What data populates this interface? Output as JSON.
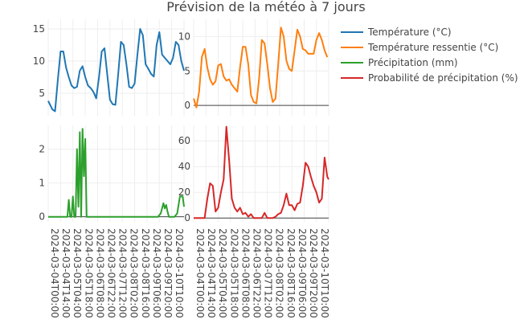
{
  "title": "Prévision de la météo à 7 jours",
  "legend": [
    {
      "name": "Température (°C)",
      "color": "#1f77b4"
    },
    {
      "name": "Température ressentie (°C)",
      "color": "#ff7f0e"
    },
    {
      "name": "Précipitation (mm)",
      "color": "#2ca02c"
    },
    {
      "name": "Probabilité de précipitation (%)",
      "color": "#d62728"
    }
  ],
  "chart_data": {
    "type": "line",
    "title": "Prévision de la météo à 7 jours",
    "legend_position": "top-right",
    "grid": true,
    "x_tick_labels": {
      "left": [
        "2024-03-04T00:00",
        "2024-03-04T14:00",
        "2024-03-05T04:00",
        "2024-03-05T18:00",
        "2024-03-06T08:00",
        "2024-03-06T22:00",
        "2024-03-07T12:00",
        "2024-03-08T02:00",
        "2024-03-08T16:00",
        "2024-03-09T06:00",
        "2024-03-09T20:00",
        "2024-03-10T10:00"
      ],
      "right": [
        "2024-03-04T00:00",
        "2024-03-04T14:00",
        "2024-03-05T04:00",
        "2024-03-05T18:00",
        "2024-03-06T08:00",
        "2024-03-06T22:00",
        "2024-03-07T12:00",
        "2024-03-08T02:00",
        "2024-03-08T16:00",
        "2024-03-09T06:00",
        "2024-03-09T20:00",
        "2024-03-10T10:00"
      ]
    },
    "panels": [
      {
        "id": "temperature",
        "series_name": "Température (°C)",
        "color": "#1f77b4",
        "ylim": [
          1.5,
          16.5
        ],
        "yticks": [
          5,
          10,
          15
        ],
        "zeroline": false,
        "points": [
          [
            0,
            3.8
          ],
          [
            3,
            2.5
          ],
          [
            5,
            2.2
          ],
          [
            7,
            7.0
          ],
          [
            9,
            11.5
          ],
          [
            11,
            11.5
          ],
          [
            13,
            9.0
          ],
          [
            15,
            7.5
          ],
          [
            17,
            6.2
          ],
          [
            19,
            5.8
          ],
          [
            21,
            6.0
          ],
          [
            23,
            8.5
          ],
          [
            25,
            9.2
          ],
          [
            27,
            7.5
          ],
          [
            29,
            6.2
          ],
          [
            31,
            5.8
          ],
          [
            33,
            5.2
          ],
          [
            35,
            4.2
          ],
          [
            37,
            7.5
          ],
          [
            39,
            11.5
          ],
          [
            41,
            12.0
          ],
          [
            43,
            8.0
          ],
          [
            45,
            4.0
          ],
          [
            47,
            3.3
          ],
          [
            49,
            3.2
          ],
          [
            51,
            8.0
          ],
          [
            53,
            13.0
          ],
          [
            55,
            12.5
          ],
          [
            57,
            9.5
          ],
          [
            59,
            6.0
          ],
          [
            61,
            5.8
          ],
          [
            63,
            6.5
          ],
          [
            65,
            11.0
          ],
          [
            67,
            15.0
          ],
          [
            69,
            14.0
          ],
          [
            71,
            9.5
          ],
          [
            73,
            8.8
          ],
          [
            75,
            8.0
          ],
          [
            77,
            7.6
          ],
          [
            79,
            12.5
          ],
          [
            81,
            14.5
          ],
          [
            83,
            11.0
          ],
          [
            85,
            10.5
          ],
          [
            87,
            10.0
          ],
          [
            89,
            9.5
          ],
          [
            91,
            10.5
          ],
          [
            93,
            13.0
          ],
          [
            95,
            12.5
          ],
          [
            97,
            10.0
          ],
          [
            99,
            8.5
          ]
        ]
      },
      {
        "id": "apparent-temperature",
        "series_name": "Température ressentie (°C)",
        "color": "#ff7f0e",
        "ylim": [
          -1.5,
          12.5
        ],
        "yticks": [
          0,
          5,
          10
        ],
        "zeroline": true,
        "points": [
          [
            0,
            1.0
          ],
          [
            2,
            -0.3
          ],
          [
            4,
            2.0
          ],
          [
            6,
            7.0
          ],
          [
            8,
            8.2
          ],
          [
            10,
            5.5
          ],
          [
            12,
            3.8
          ],
          [
            14,
            3.0
          ],
          [
            16,
            3.5
          ],
          [
            18,
            5.8
          ],
          [
            20,
            6.0
          ],
          [
            22,
            4.2
          ],
          [
            24,
            3.6
          ],
          [
            26,
            3.8
          ],
          [
            28,
            3.0
          ],
          [
            30,
            2.5
          ],
          [
            32,
            2.0
          ],
          [
            34,
            5.5
          ],
          [
            36,
            8.5
          ],
          [
            38,
            8.5
          ],
          [
            40,
            6.0
          ],
          [
            42,
            1.5
          ],
          [
            44,
            0.5
          ],
          [
            46,
            0.3
          ],
          [
            48,
            4.0
          ],
          [
            50,
            9.5
          ],
          [
            52,
            9.0
          ],
          [
            54,
            6.0
          ],
          [
            56,
            2.5
          ],
          [
            58,
            0.5
          ],
          [
            60,
            1.0
          ],
          [
            62,
            6.0
          ],
          [
            64,
            11.3
          ],
          [
            66,
            10.0
          ],
          [
            68,
            6.5
          ],
          [
            70,
            5.3
          ],
          [
            72,
            5.0
          ],
          [
            74,
            8.0
          ],
          [
            76,
            11.0
          ],
          [
            78,
            10.0
          ],
          [
            80,
            8.2
          ],
          [
            82,
            8.0
          ],
          [
            84,
            7.5
          ],
          [
            86,
            7.5
          ],
          [
            88,
            7.5
          ],
          [
            90,
            9.5
          ],
          [
            92,
            10.5
          ],
          [
            94,
            9.5
          ],
          [
            96,
            8.0
          ],
          [
            98,
            7.0
          ]
        ]
      },
      {
        "id": "precipitation",
        "series_name": "Précipitation (mm)",
        "color": "#2ca02c",
        "ylim": [
          -0.15,
          2.7
        ],
        "yticks": [
          0,
          1,
          2
        ],
        "zeroline": true,
        "points": [
          [
            0,
            0
          ],
          [
            10,
            0
          ],
          [
            14,
            0
          ],
          [
            15,
            0.5
          ],
          [
            16,
            0
          ],
          [
            17,
            0
          ],
          [
            18,
            0.6
          ],
          [
            19,
            0
          ],
          [
            20,
            0
          ],
          [
            21,
            2.0
          ],
          [
            22,
            0.3
          ],
          [
            23,
            2.5
          ],
          [
            24,
            0
          ],
          [
            25,
            2.6
          ],
          [
            26,
            1.2
          ],
          [
            27,
            2.3
          ],
          [
            28,
            0
          ],
          [
            30,
            0
          ],
          [
            50,
            0
          ],
          [
            70,
            0
          ],
          [
            80,
            0
          ],
          [
            82,
            0.1
          ],
          [
            84,
            0.4
          ],
          [
            85,
            0.25
          ],
          [
            86,
            0.35
          ],
          [
            87,
            0.15
          ],
          [
            88,
            0
          ],
          [
            92,
            0
          ],
          [
            94,
            0.1
          ],
          [
            96,
            0.6
          ],
          [
            98,
            0.6
          ],
          [
            99,
            0.3
          ]
        ]
      },
      {
        "id": "precipitation-probability",
        "series_name": "Probabilité de précipitation (%)",
        "color": "#d62728",
        "ylim": [
          -3,
          72
        ],
        "yticks": [
          0,
          20,
          40,
          60
        ],
        "zeroline": true,
        "points": [
          [
            0,
            0
          ],
          [
            8,
            0
          ],
          [
            10,
            15
          ],
          [
            12,
            27
          ],
          [
            14,
            25
          ],
          [
            16,
            5
          ],
          [
            18,
            8
          ],
          [
            20,
            20
          ],
          [
            22,
            30
          ],
          [
            24,
            71
          ],
          [
            26,
            45
          ],
          [
            28,
            15
          ],
          [
            30,
            8
          ],
          [
            32,
            5
          ],
          [
            34,
            8
          ],
          [
            36,
            3
          ],
          [
            38,
            4
          ],
          [
            40,
            1
          ],
          [
            42,
            3
          ],
          [
            44,
            0
          ],
          [
            46,
            0
          ],
          [
            48,
            0
          ],
          [
            50,
            0
          ],
          [
            52,
            4
          ],
          [
            54,
            0
          ],
          [
            56,
            0
          ],
          [
            58,
            0
          ],
          [
            60,
            1
          ],
          [
            62,
            3
          ],
          [
            64,
            4
          ],
          [
            66,
            10
          ],
          [
            68,
            19
          ],
          [
            70,
            10
          ],
          [
            72,
            10
          ],
          [
            74,
            6
          ],
          [
            76,
            11
          ],
          [
            78,
            12
          ],
          [
            80,
            25
          ],
          [
            82,
            43
          ],
          [
            84,
            40
          ],
          [
            86,
            32
          ],
          [
            88,
            25
          ],
          [
            90,
            20
          ],
          [
            92,
            12
          ],
          [
            94,
            15
          ],
          [
            96,
            47
          ],
          [
            98,
            32
          ],
          [
            99,
            30
          ]
        ]
      }
    ]
  }
}
